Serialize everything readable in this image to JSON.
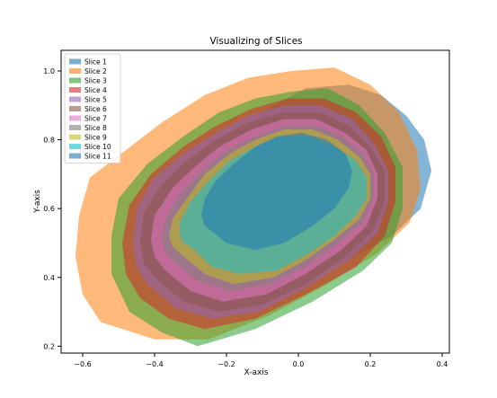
{
  "chart_data": {
    "type": "area",
    "title": "Visualizing  of Slices",
    "xlabel": "X-axis",
    "ylabel": "Y-axis",
    "xlim": [
      -0.66,
      0.42
    ],
    "ylim": [
      0.18,
      1.06
    ],
    "x_ticks": [
      "−0.6",
      "−0.4",
      "−0.2",
      "0.0",
      "0.2",
      "0.4"
    ],
    "y_ticks": [
      "0.2",
      "0.4",
      "0.6",
      "0.8",
      "1.0"
    ],
    "x_tick_values": [
      -0.6,
      -0.4,
      -0.2,
      0.0,
      0.2,
      0.4
    ],
    "y_tick_values": [
      0.2,
      0.4,
      0.6,
      0.8,
      1.0
    ],
    "legend_position": "top-left",
    "grid": false,
    "series": [
      {
        "name": "Slice 1",
        "color": "#1f77b4",
        "points": [
          [
            -0.06,
            0.38
          ],
          [
            0.12,
            0.44
          ],
          [
            0.26,
            0.52
          ],
          [
            0.34,
            0.6
          ],
          [
            0.37,
            0.71
          ],
          [
            0.35,
            0.8
          ],
          [
            0.3,
            0.87
          ],
          [
            0.23,
            0.93
          ],
          [
            0.14,
            0.96
          ],
          [
            0.02,
            0.95
          ],
          [
            -0.1,
            0.88
          ],
          [
            -0.18,
            0.77
          ],
          [
            -0.22,
            0.64
          ],
          [
            -0.2,
            0.52
          ],
          [
            -0.14,
            0.43
          ]
        ]
      },
      {
        "name": "Slice 2",
        "color": "#ff7f0e",
        "points": [
          [
            -0.55,
            0.27
          ],
          [
            -0.4,
            0.22
          ],
          [
            -0.25,
            0.22
          ],
          [
            -0.08,
            0.29
          ],
          [
            0.08,
            0.38
          ],
          [
            0.22,
            0.47
          ],
          [
            0.31,
            0.56
          ],
          [
            0.34,
            0.66
          ],
          [
            0.33,
            0.77
          ],
          [
            0.28,
            0.88
          ],
          [
            0.2,
            0.96
          ],
          [
            0.1,
            1.01
          ],
          [
            -0.02,
            1.0
          ],
          [
            -0.14,
            0.98
          ],
          [
            -0.26,
            0.93
          ],
          [
            -0.38,
            0.85
          ],
          [
            -0.48,
            0.77
          ],
          [
            -0.58,
            0.69
          ],
          [
            -0.61,
            0.58
          ],
          [
            -0.62,
            0.46
          ],
          [
            -0.6,
            0.35
          ]
        ]
      },
      {
        "name": "Slice 3",
        "color": "#2ca02c",
        "points": [
          [
            -0.47,
            0.3
          ],
          [
            -0.38,
            0.24
          ],
          [
            -0.28,
            0.2
          ],
          [
            -0.12,
            0.25
          ],
          [
            0.04,
            0.33
          ],
          [
            0.18,
            0.42
          ],
          [
            0.26,
            0.5
          ],
          [
            0.29,
            0.6
          ],
          [
            0.29,
            0.72
          ],
          [
            0.24,
            0.82
          ],
          [
            0.17,
            0.9
          ],
          [
            0.08,
            0.95
          ],
          [
            -0.02,
            0.94
          ],
          [
            -0.12,
            0.92
          ],
          [
            -0.22,
            0.88
          ],
          [
            -0.32,
            0.81
          ],
          [
            -0.42,
            0.73
          ],
          [
            -0.5,
            0.63
          ],
          [
            -0.52,
            0.52
          ],
          [
            -0.52,
            0.41
          ]
        ]
      },
      {
        "name": "Slice 4",
        "color": "#d62728",
        "points": [
          [
            -0.44,
            0.34
          ],
          [
            -0.36,
            0.28
          ],
          [
            -0.26,
            0.25
          ],
          [
            -0.12,
            0.28
          ],
          [
            0.02,
            0.35
          ],
          [
            0.16,
            0.43
          ],
          [
            0.24,
            0.52
          ],
          [
            0.27,
            0.62
          ],
          [
            0.27,
            0.72
          ],
          [
            0.23,
            0.81
          ],
          [
            0.16,
            0.88
          ],
          [
            0.07,
            0.92
          ],
          [
            -0.03,
            0.92
          ],
          [
            -0.13,
            0.89
          ],
          [
            -0.23,
            0.84
          ],
          [
            -0.32,
            0.78
          ],
          [
            -0.41,
            0.7
          ],
          [
            -0.47,
            0.61
          ],
          [
            -0.49,
            0.5
          ],
          [
            -0.48,
            0.41
          ]
        ]
      },
      {
        "name": "Slice 5",
        "color": "#9467bd",
        "points": [
          [
            -0.42,
            0.38
          ],
          [
            -0.34,
            0.31
          ],
          [
            -0.24,
            0.28
          ],
          [
            -0.11,
            0.3
          ],
          [
            0.02,
            0.37
          ],
          [
            0.14,
            0.45
          ],
          [
            0.22,
            0.53
          ],
          [
            0.25,
            0.62
          ],
          [
            0.25,
            0.71
          ],
          [
            0.21,
            0.79
          ],
          [
            0.15,
            0.86
          ],
          [
            0.06,
            0.9
          ],
          [
            -0.04,
            0.9
          ],
          [
            -0.14,
            0.87
          ],
          [
            -0.23,
            0.82
          ],
          [
            -0.32,
            0.76
          ],
          [
            -0.4,
            0.69
          ],
          [
            -0.45,
            0.6
          ],
          [
            -0.46,
            0.5
          ],
          [
            -0.45,
            0.43
          ]
        ]
      },
      {
        "name": "Slice 6",
        "color": "#8c564b",
        "points": [
          [
            -0.4,
            0.4
          ],
          [
            -0.32,
            0.33
          ],
          [
            -0.22,
            0.3
          ],
          [
            -0.1,
            0.32
          ],
          [
            0.02,
            0.38
          ],
          [
            0.13,
            0.46
          ],
          [
            0.21,
            0.54
          ],
          [
            0.24,
            0.62
          ],
          [
            0.24,
            0.71
          ],
          [
            0.2,
            0.78
          ],
          [
            0.14,
            0.84
          ],
          [
            0.06,
            0.88
          ],
          [
            -0.04,
            0.88
          ],
          [
            -0.14,
            0.85
          ],
          [
            -0.23,
            0.8
          ],
          [
            -0.31,
            0.74
          ],
          [
            -0.38,
            0.67
          ],
          [
            -0.43,
            0.59
          ],
          [
            -0.44,
            0.5
          ],
          [
            -0.43,
            0.44
          ]
        ]
      },
      {
        "name": "Slice 7",
        "color": "#e377c2",
        "points": [
          [
            -0.37,
            0.42
          ],
          [
            -0.3,
            0.36
          ],
          [
            -0.21,
            0.33
          ],
          [
            -0.09,
            0.35
          ],
          [
            0.02,
            0.41
          ],
          [
            0.12,
            0.48
          ],
          [
            0.19,
            0.55
          ],
          [
            0.22,
            0.63
          ],
          [
            0.22,
            0.7
          ],
          [
            0.19,
            0.77
          ],
          [
            0.13,
            0.82
          ],
          [
            0.05,
            0.86
          ],
          [
            -0.04,
            0.86
          ],
          [
            -0.13,
            0.83
          ],
          [
            -0.22,
            0.78
          ],
          [
            -0.29,
            0.72
          ],
          [
            -0.35,
            0.66
          ],
          [
            -0.4,
            0.58
          ],
          [
            -0.41,
            0.51
          ],
          [
            -0.4,
            0.46
          ]
        ]
      },
      {
        "name": "Slice 8",
        "color": "#7f7f7f",
        "points": [
          [
            -0.35,
            0.45
          ],
          [
            -0.28,
            0.39
          ],
          [
            -0.19,
            0.36
          ],
          [
            -0.08,
            0.38
          ],
          [
            0.02,
            0.43
          ],
          [
            0.11,
            0.5
          ],
          [
            0.18,
            0.56
          ],
          [
            0.21,
            0.63
          ],
          [
            0.21,
            0.7
          ],
          [
            0.18,
            0.76
          ],
          [
            0.12,
            0.81
          ],
          [
            0.05,
            0.84
          ],
          [
            -0.04,
            0.84
          ],
          [
            -0.12,
            0.81
          ],
          [
            -0.2,
            0.77
          ],
          [
            -0.27,
            0.71
          ],
          [
            -0.33,
            0.64
          ],
          [
            -0.37,
            0.57
          ],
          [
            -0.38,
            0.51
          ],
          [
            -0.37,
            0.47
          ]
        ]
      },
      {
        "name": "Slice 9",
        "color": "#bcbd22",
        "points": [
          [
            -0.33,
            0.47
          ],
          [
            -0.26,
            0.41
          ],
          [
            -0.18,
            0.38
          ],
          [
            -0.07,
            0.4
          ],
          [
            0.02,
            0.45
          ],
          [
            0.1,
            0.51
          ],
          [
            0.17,
            0.57
          ],
          [
            0.2,
            0.63
          ],
          [
            0.2,
            0.7
          ],
          [
            0.17,
            0.75
          ],
          [
            0.11,
            0.8
          ],
          [
            0.04,
            0.83
          ],
          [
            -0.04,
            0.83
          ],
          [
            -0.12,
            0.8
          ],
          [
            -0.19,
            0.76
          ],
          [
            -0.26,
            0.7
          ],
          [
            -0.31,
            0.63
          ],
          [
            -0.35,
            0.57
          ],
          [
            -0.36,
            0.52
          ],
          [
            -0.35,
            0.49
          ]
        ]
      },
      {
        "name": "Slice 10",
        "color": "#17becf",
        "points": [
          [
            -0.3,
            0.49
          ],
          [
            -0.24,
            0.43
          ],
          [
            -0.16,
            0.41
          ],
          [
            -0.06,
            0.42
          ],
          [
            0.03,
            0.47
          ],
          [
            0.1,
            0.52
          ],
          [
            0.16,
            0.58
          ],
          [
            0.19,
            0.63
          ],
          [
            0.19,
            0.69
          ],
          [
            0.16,
            0.74
          ],
          [
            0.1,
            0.78
          ],
          [
            0.03,
            0.81
          ],
          [
            -0.05,
            0.81
          ],
          [
            -0.12,
            0.78
          ],
          [
            -0.19,
            0.74
          ],
          [
            -0.25,
            0.68
          ],
          [
            -0.3,
            0.62
          ],
          [
            -0.33,
            0.56
          ],
          [
            -0.33,
            0.52
          ],
          [
            -0.32,
            0.5
          ]
        ]
      },
      {
        "name": "Slice 11",
        "color": "#1f77b4",
        "points": [
          [
            -0.26,
            0.55
          ],
          [
            -0.2,
            0.5
          ],
          [
            -0.12,
            0.48
          ],
          [
            -0.04,
            0.5
          ],
          [
            0.04,
            0.55
          ],
          [
            0.1,
            0.6
          ],
          [
            0.14,
            0.66
          ],
          [
            0.15,
            0.71
          ],
          [
            0.13,
            0.76
          ],
          [
            0.08,
            0.8
          ],
          [
            0.01,
            0.82
          ],
          [
            -0.06,
            0.81
          ],
          [
            -0.12,
            0.78
          ],
          [
            -0.18,
            0.73
          ],
          [
            -0.23,
            0.68
          ],
          [
            -0.26,
            0.63
          ],
          [
            -0.27,
            0.58
          ]
        ]
      }
    ]
  }
}
